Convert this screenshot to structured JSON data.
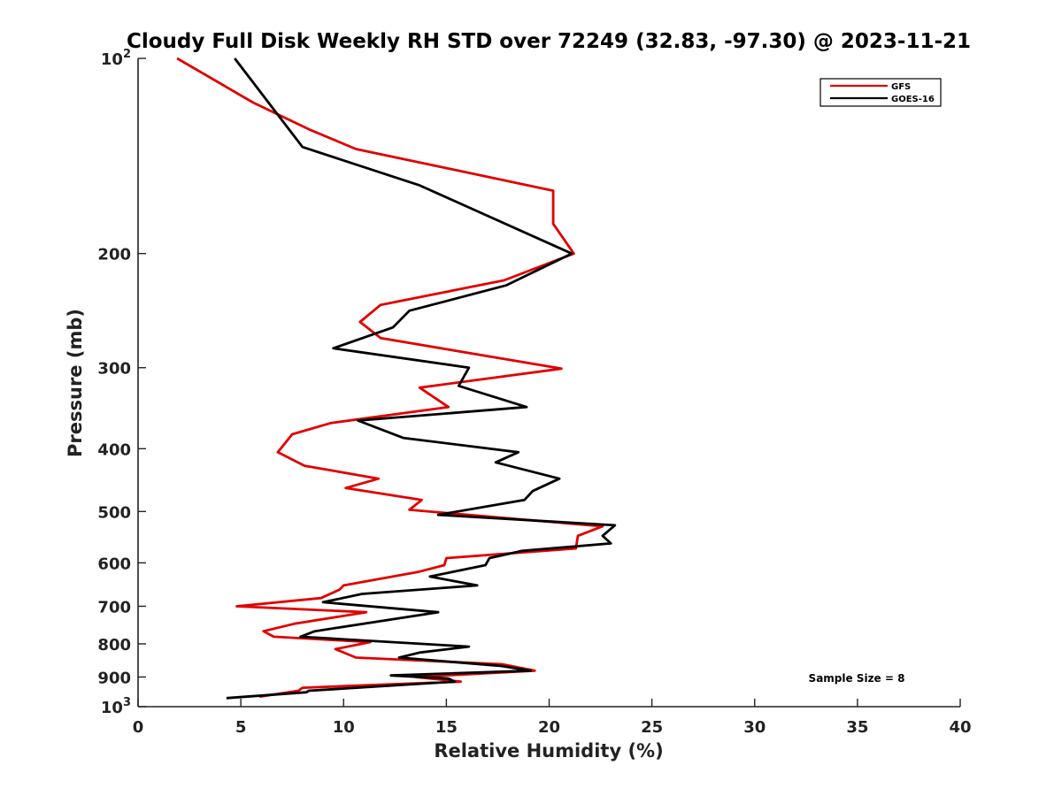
{
  "chart_data": {
    "type": "line",
    "title": "Cloudy Full Disk Weekly RH STD over 72249 (32.83, -97.30) @ 2023-11-21",
    "xlabel": "Relative Humidity (%)",
    "ylabel": "Pressure (mb)",
    "xlim": [
      0,
      40
    ],
    "ylim": [
      100,
      1000
    ],
    "y_scale": "log",
    "y_reversed": true,
    "x_ticks": [
      0,
      5,
      10,
      15,
      20,
      25,
      30,
      35,
      40
    ],
    "y_ticks": [
      {
        "value": 100,
        "base": "10",
        "exp": "2"
      },
      {
        "value": 200,
        "label": "200"
      },
      {
        "value": 300,
        "label": "300"
      },
      {
        "value": 400,
        "label": "400"
      },
      {
        "value": 500,
        "label": "500"
      },
      {
        "value": 600,
        "label": "600"
      },
      {
        "value": 700,
        "label": "700"
      },
      {
        "value": 800,
        "label": "800"
      },
      {
        "value": 900,
        "label": "900"
      },
      {
        "value": 1000,
        "base": "10",
        "exp": "3"
      }
    ],
    "grid": false,
    "legend_position": "top-right",
    "annotation": "Sample Size = 8",
    "series": [
      {
        "name": "GFS",
        "color": "#e00000",
        "points": [
          [
            1.9,
            100
          ],
          [
            5.6,
            117
          ],
          [
            8.4,
            129
          ],
          [
            10.6,
            138
          ],
          [
            20.2,
            160
          ],
          [
            20.2,
            180
          ],
          [
            21.2,
            200
          ],
          [
            17.8,
            220
          ],
          [
            11.8,
            240
          ],
          [
            10.8,
            255
          ],
          [
            11.8,
            270
          ],
          [
            20.6,
            301
          ],
          [
            13.7,
            322
          ],
          [
            15.1,
            345
          ],
          [
            9.4,
            365
          ],
          [
            7.5,
            380
          ],
          [
            6.8,
            405
          ],
          [
            8.1,
            425
          ],
          [
            11.7,
            445
          ],
          [
            10.1,
            460
          ],
          [
            13.8,
            480
          ],
          [
            13.2,
            497
          ],
          [
            14.8,
            502
          ],
          [
            22.6,
            527
          ],
          [
            21.4,
            545
          ],
          [
            21.3,
            570
          ],
          [
            15.0,
            590
          ],
          [
            14.9,
            605
          ],
          [
            13.6,
            620
          ],
          [
            10.0,
            650
          ],
          [
            9.8,
            660
          ],
          [
            8.9,
            680
          ],
          [
            4.8,
            700
          ],
          [
            11.1,
            715
          ],
          [
            7.6,
            745
          ],
          [
            6.1,
            765
          ],
          [
            6.6,
            780
          ],
          [
            11.3,
            795
          ],
          [
            9.6,
            815
          ],
          [
            10.6,
            840
          ],
          [
            17.7,
            860
          ],
          [
            19.3,
            880
          ],
          [
            13.5,
            900
          ],
          [
            15.7,
            915
          ],
          [
            8.0,
            935
          ],
          [
            7.8,
            945
          ],
          [
            5.9,
            965
          ]
        ]
      },
      {
        "name": "GOES-16",
        "color": "#000000",
        "points": [
          [
            4.7,
            100
          ],
          [
            8.0,
            137
          ],
          [
            13.7,
            157
          ],
          [
            21.1,
            200
          ],
          [
            17.9,
            224
          ],
          [
            13.2,
            245
          ],
          [
            12.4,
            260
          ],
          [
            9.5,
            280
          ],
          [
            16.1,
            300
          ],
          [
            15.6,
            320
          ],
          [
            18.9,
            345
          ],
          [
            10.7,
            362
          ],
          [
            12.9,
            385
          ],
          [
            18.5,
            405
          ],
          [
            17.4,
            420
          ],
          [
            20.5,
            445
          ],
          [
            19.2,
            465
          ],
          [
            18.8,
            480
          ],
          [
            14.6,
            506
          ],
          [
            23.2,
            525
          ],
          [
            22.6,
            545
          ],
          [
            23.0,
            560
          ],
          [
            18.7,
            575
          ],
          [
            17.1,
            590
          ],
          [
            16.9,
            605
          ],
          [
            14.2,
            630
          ],
          [
            16.5,
            650
          ],
          [
            10.9,
            670
          ],
          [
            9.0,
            690
          ],
          [
            14.6,
            715
          ],
          [
            8.6,
            765
          ],
          [
            7.9,
            780
          ],
          [
            16.1,
            808
          ],
          [
            13.7,
            825
          ],
          [
            12.7,
            840
          ],
          [
            17.6,
            865
          ],
          [
            19.1,
            880
          ],
          [
            12.3,
            895
          ],
          [
            15.1,
            905
          ],
          [
            15.4,
            915
          ],
          [
            8.3,
            945
          ],
          [
            8.2,
            950
          ],
          [
            4.3,
            970
          ]
        ]
      }
    ]
  }
}
